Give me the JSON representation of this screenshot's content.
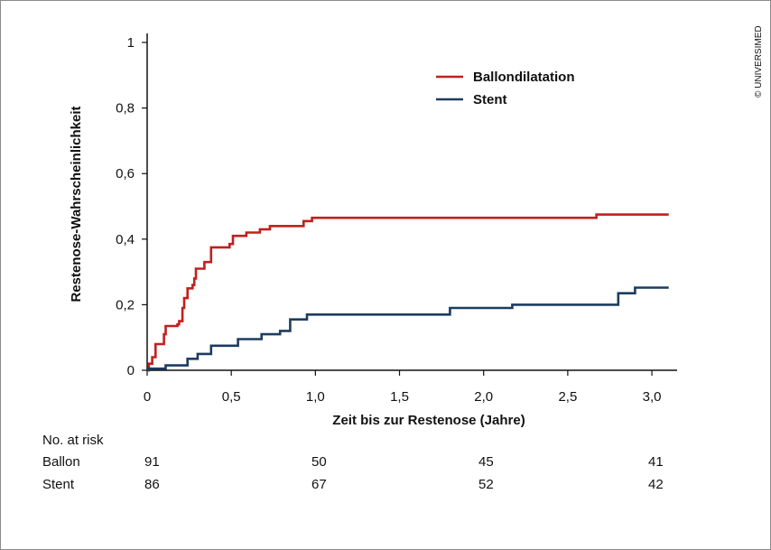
{
  "copyright": "© UNIVERSIMED",
  "chart_data": {
    "type": "line",
    "xlabel": "Zeit bis zur Restenose (Jahre)",
    "ylabel": "Restenose-Wahrscheinlichkeit",
    "xlim": [
      0,
      3.15
    ],
    "ylim": [
      0,
      1
    ],
    "xticks": [
      "0",
      "0,5",
      "1,0",
      "1,5",
      "2,0",
      "2,5",
      "3,0"
    ],
    "xtick_values": [
      0,
      0.5,
      1.0,
      1.5,
      2.0,
      2.5,
      3.0
    ],
    "yticks": [
      "0",
      "0,2",
      "0,4",
      "0,6",
      "0,8",
      "1"
    ],
    "ytick_values": [
      0,
      0.2,
      0.4,
      0.6,
      0.8,
      1.0
    ],
    "grid": false,
    "legend_position": "top-center",
    "series": [
      {
        "name": "Ballondilatation",
        "color": "#c0201e",
        "step_points": [
          [
            0,
            0
          ],
          [
            0.01,
            0.02
          ],
          [
            0.03,
            0.04
          ],
          [
            0.05,
            0.08
          ],
          [
            0.1,
            0.11
          ],
          [
            0.11,
            0.135
          ],
          [
            0.18,
            0.14
          ],
          [
            0.19,
            0.15
          ],
          [
            0.21,
            0.19
          ],
          [
            0.22,
            0.22
          ],
          [
            0.24,
            0.25
          ],
          [
            0.27,
            0.26
          ],
          [
            0.28,
            0.28
          ],
          [
            0.29,
            0.31
          ],
          [
            0.34,
            0.33
          ],
          [
            0.38,
            0.375
          ],
          [
            0.49,
            0.385
          ],
          [
            0.51,
            0.41
          ],
          [
            0.59,
            0.42
          ],
          [
            0.67,
            0.43
          ],
          [
            0.73,
            0.44
          ],
          [
            0.93,
            0.455
          ],
          [
            0.98,
            0.465
          ],
          [
            2.67,
            0.475
          ],
          [
            3.1,
            0.475
          ]
        ]
      },
      {
        "name": "Stent",
        "color": "#1d3c60",
        "step_points": [
          [
            0,
            0
          ],
          [
            0.01,
            0.005
          ],
          [
            0.11,
            0.015
          ],
          [
            0.24,
            0.035
          ],
          [
            0.3,
            0.05
          ],
          [
            0.38,
            0.075
          ],
          [
            0.54,
            0.095
          ],
          [
            0.68,
            0.11
          ],
          [
            0.79,
            0.12
          ],
          [
            0.85,
            0.155
          ],
          [
            0.95,
            0.17
          ],
          [
            1.8,
            0.19
          ],
          [
            2.17,
            0.2
          ],
          [
            2.8,
            0.235
          ],
          [
            2.9,
            0.252
          ],
          [
            3.1,
            0.252
          ]
        ]
      }
    ],
    "risk_table": {
      "title": "No. at risk",
      "rows": [
        {
          "label": "Ballon",
          "values": [
            "91",
            "50",
            "45",
            "41"
          ]
        },
        {
          "label": "Stent",
          "values": [
            "86",
            "67",
            "52",
            "42"
          ]
        }
      ]
    }
  }
}
